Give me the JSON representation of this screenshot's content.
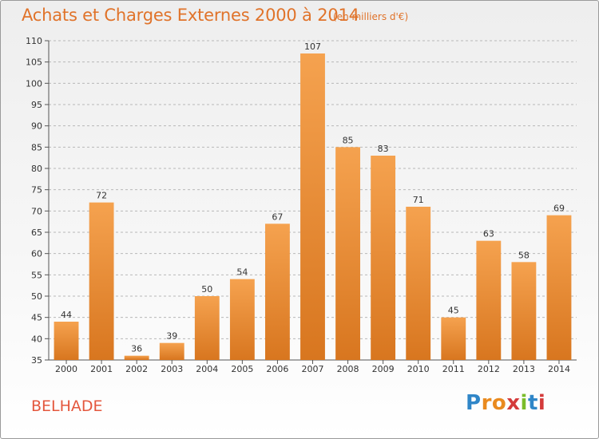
{
  "header": {
    "title": "Achats et Charges Externes 2000 à 2014",
    "subtitle": "(en milliers d'€)"
  },
  "footer": {
    "commune": "BELHADE",
    "logo_text": "Proxiti",
    "logo_colors": [
      "#2f86c8",
      "#e98a1f",
      "#7bbd2b",
      "#d43b3b"
    ]
  },
  "colors": {
    "title": "#e0732a",
    "commune": "#e4573d",
    "bar_light": "#f5a24f",
    "bar_dark": "#d8761f",
    "grid": "#b8b8b8"
  },
  "chart_data": {
    "type": "bar",
    "title": "Achats et Charges Externes 2000 à 2014",
    "subtitle": "(en milliers d'€)",
    "categories": [
      "2000",
      "2001",
      "2002",
      "2003",
      "2004",
      "2005",
      "2006",
      "2007",
      "2008",
      "2009",
      "2010",
      "2011",
      "2012",
      "2013",
      "2014"
    ],
    "values": [
      44,
      72,
      36,
      39,
      50,
      54,
      67,
      107,
      85,
      83,
      71,
      45,
      63,
      58,
      69
    ],
    "ylim": [
      35,
      110
    ],
    "yticks": [
      35,
      40,
      45,
      50,
      55,
      60,
      65,
      70,
      75,
      80,
      85,
      90,
      95,
      100,
      105,
      110
    ],
    "grid": "horizontal dashed",
    "data_labels": true
  }
}
